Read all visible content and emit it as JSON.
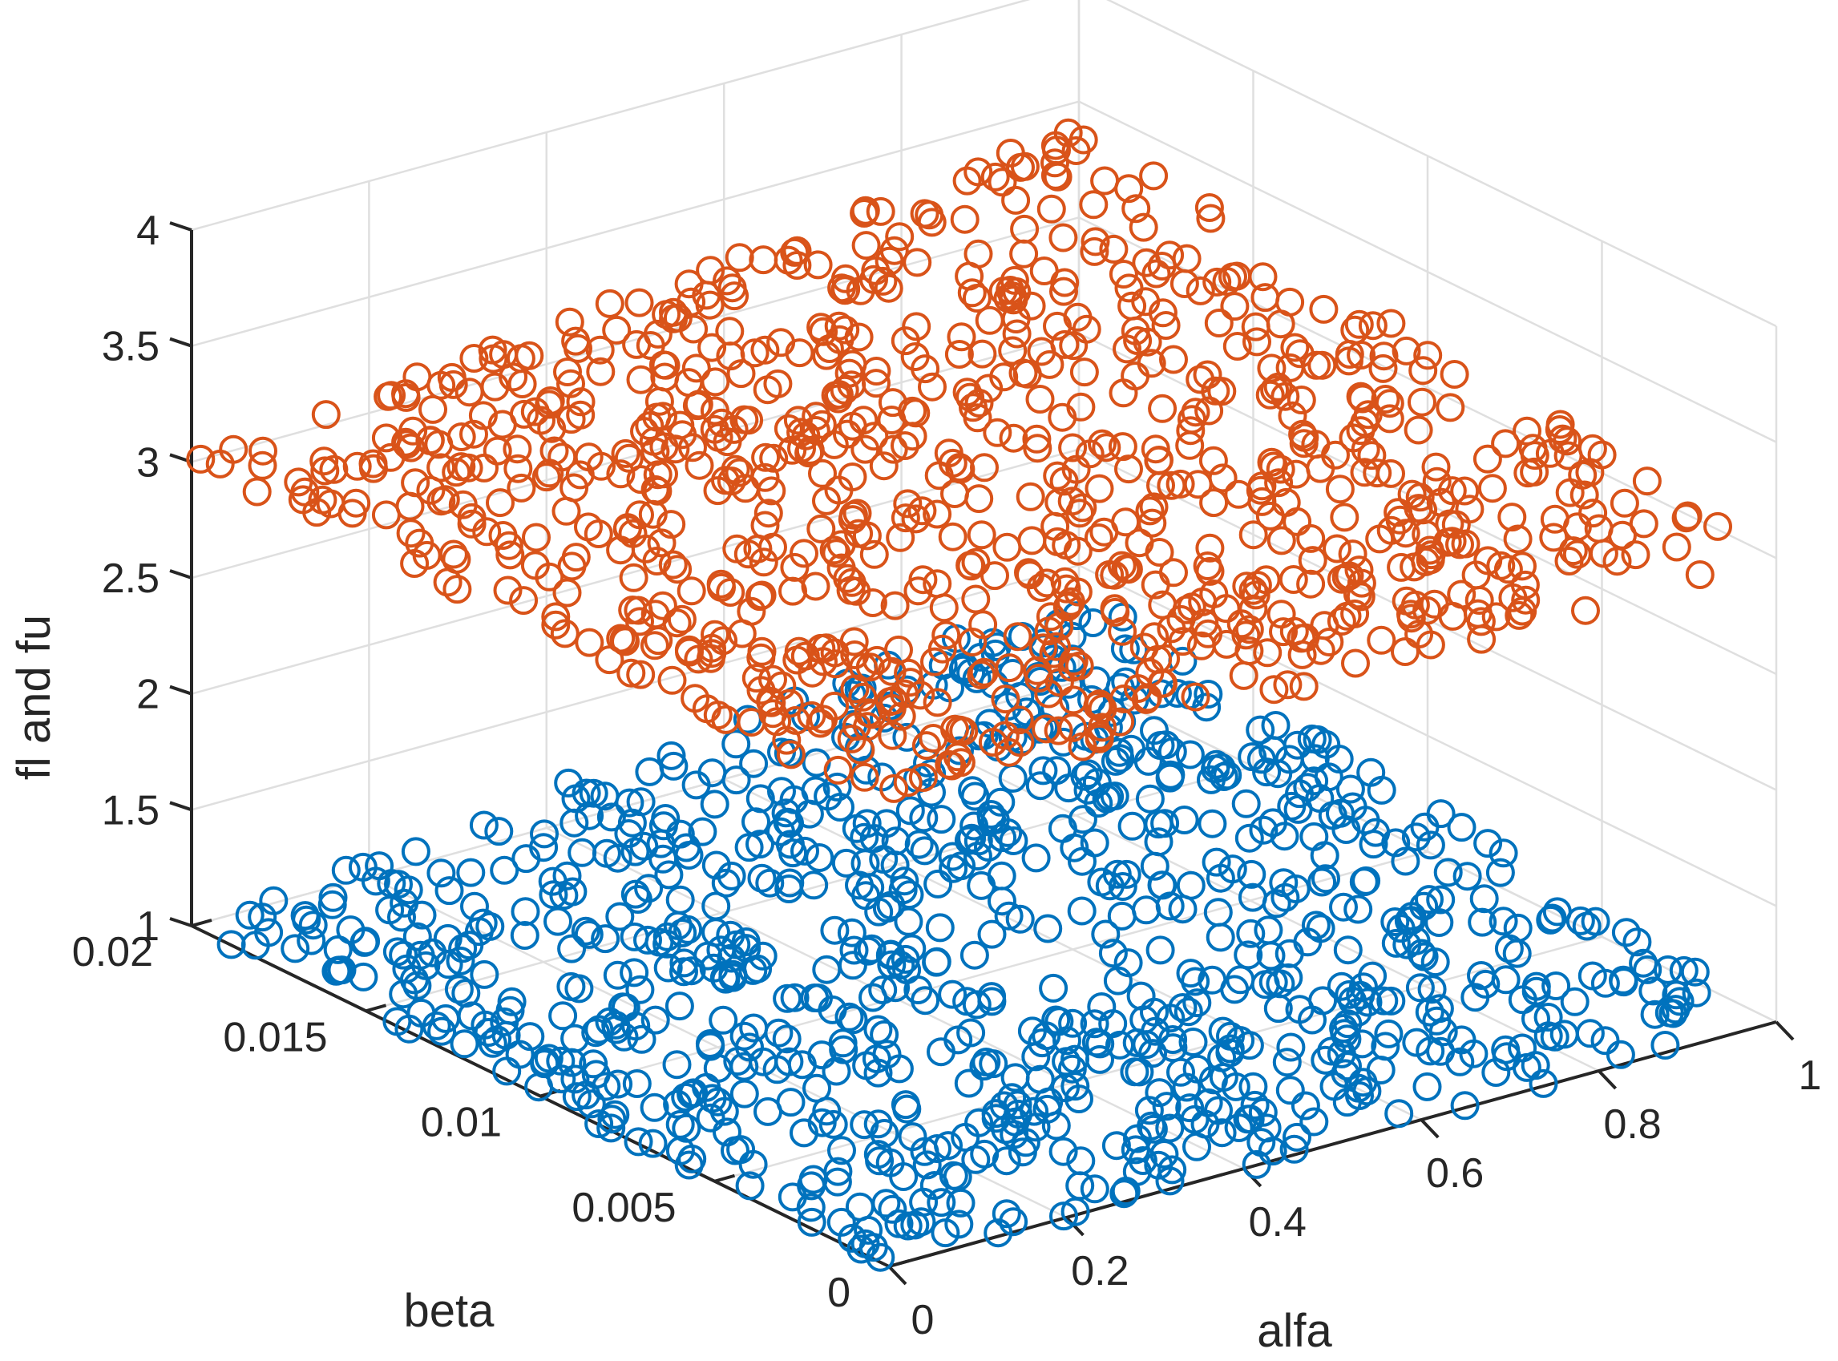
{
  "chart_data": {
    "type": "scatter",
    "projection": "3d",
    "title": "",
    "xlabel": "alfa",
    "ylabel": "beta",
    "zlabel": "fl and fu",
    "xlim": [
      0,
      1
    ],
    "ylim": [
      0,
      0.02
    ],
    "zlim": [
      1,
      4
    ],
    "x_ticks": [
      0,
      0.2,
      0.4,
      0.6,
      0.8,
      1
    ],
    "x_tick_labels": [
      "0",
      "0.2",
      "0.4",
      "0.6",
      "0.8",
      "1"
    ],
    "y_ticks": [
      0,
      0.005,
      0.01,
      0.015,
      0.02
    ],
    "y_tick_labels": [
      "0",
      "0.005",
      "0.01",
      "0.015",
      "0.02"
    ],
    "z_ticks": [
      1,
      1.5,
      2,
      2.5,
      3,
      3.5,
      4
    ],
    "z_tick_labels": [
      "1",
      "1.5",
      "2",
      "2.5",
      "3",
      "3.5",
      "4"
    ],
    "grid": true,
    "marker": "circle-open",
    "series": [
      {
        "name": "fl",
        "color": "#0072bd",
        "points_per_series": 900,
        "x_range": [
          0,
          1
        ],
        "y_range": [
          0,
          0.02
        ],
        "z_range": [
          1,
          1.4
        ],
        "z_formula": "1 + 20*alfa*beta"
      },
      {
        "name": "fu",
        "color": "#d95319",
        "points_per_series": 900,
        "x_range": [
          0,
          1
        ],
        "y_range": [
          0,
          0.02
        ],
        "z_range": [
          3,
          3.4
        ],
        "z_formula": "3 + 20*alfa*beta"
      }
    ]
  }
}
